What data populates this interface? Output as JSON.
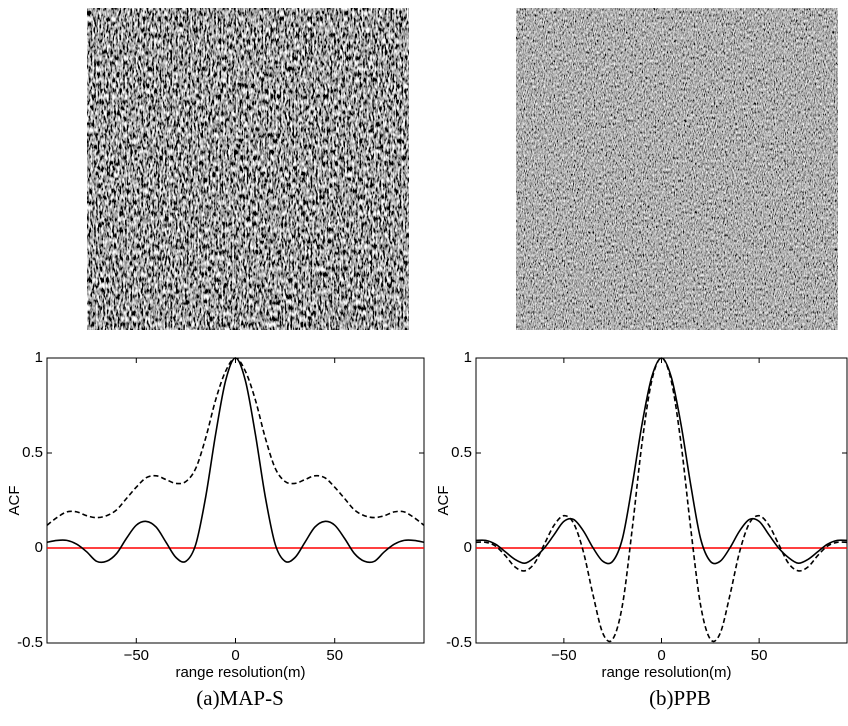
{
  "chart_data": [
    {
      "type": "line",
      "caption": "(a)MAP-S",
      "xlabel": "range resolution(m)",
      "ylabel": "ACF",
      "x": [
        -95,
        -90,
        -85,
        -80,
        -75,
        -70,
        -65,
        -60,
        -55,
        -50,
        -45,
        -40,
        -35,
        -30,
        -25,
        -20,
        -15,
        -10,
        -5,
        0,
        5,
        10,
        15,
        20,
        25,
        30,
        35,
        40,
        45,
        50,
        55,
        60,
        65,
        70,
        75,
        80,
        85,
        90,
        95
      ],
      "series": [
        {
          "color": "#000000",
          "style": "solid",
          "values": [
            0.03,
            0.04,
            0.04,
            0.02,
            -0.02,
            -0.07,
            -0.07,
            -0.03,
            0.05,
            0.12,
            0.14,
            0.11,
            0.03,
            -0.05,
            -0.07,
            0.02,
            0.27,
            0.6,
            0.88,
            1,
            0.88,
            0.6,
            0.27,
            0.02,
            -0.07,
            -0.05,
            0.03,
            0.11,
            0.14,
            0.12,
            0.05,
            -0.03,
            -0.07,
            -0.07,
            -0.02,
            0.02,
            0.04,
            0.04,
            0.03
          ]
        },
        {
          "color": "#000000",
          "style": "dashed",
          "values": [
            0.12,
            0.16,
            0.19,
            0.19,
            0.17,
            0.16,
            0.17,
            0.2,
            0.26,
            0.32,
            0.37,
            0.38,
            0.36,
            0.34,
            0.35,
            0.42,
            0.58,
            0.78,
            0.93,
            1,
            0.93,
            0.78,
            0.58,
            0.42,
            0.35,
            0.34,
            0.36,
            0.38,
            0.37,
            0.32,
            0.26,
            0.2,
            0.17,
            0.16,
            0.17,
            0.19,
            0.19,
            0.16,
            0.12
          ]
        }
      ],
      "hline": {
        "value": 0,
        "color": "#ff0000"
      },
      "xlim": [
        -95,
        95
      ],
      "xticks": [
        {
          "value": -50,
          "label": "−50"
        },
        0,
        50
      ],
      "ylim": [
        -0.5,
        1
      ],
      "yticks": [
        -0.5,
        0,
        0.5,
        1
      ]
    },
    {
      "type": "line",
      "caption": "(b)PPB",
      "xlabel": "range resolution(m)",
      "ylabel": "ACF",
      "x": [
        -95,
        -90,
        -85,
        -80,
        -75,
        -70,
        -65,
        -60,
        -55,
        -50,
        -45,
        -40,
        -35,
        -30,
        -25,
        -20,
        -15,
        -10,
        -5,
        0,
        5,
        10,
        15,
        20,
        25,
        30,
        35,
        40,
        45,
        50,
        55,
        60,
        65,
        70,
        75,
        80,
        85,
        90,
        95
      ],
      "series": [
        {
          "color": "#000000",
          "style": "solid",
          "values": [
            0.04,
            0.04,
            0.02,
            -0.02,
            -0.06,
            -0.08,
            -0.05,
            0,
            0.07,
            0.14,
            0.15,
            0.09,
            0,
            -0.07,
            -0.07,
            0.05,
            0.33,
            0.65,
            0.9,
            1,
            0.9,
            0.65,
            0.33,
            0.05,
            -0.07,
            -0.07,
            0,
            0.09,
            0.15,
            0.14,
            0.07,
            0,
            -0.05,
            -0.08,
            -0.06,
            -0.02,
            0.02,
            0.04,
            0.04
          ]
        },
        {
          "color": "#000000",
          "style": "dashed",
          "values": [
            0.03,
            0.03,
            0.01,
            -0.04,
            -0.1,
            -0.12,
            -0.08,
            0.02,
            0.12,
            0.17,
            0.13,
            -0.02,
            -0.25,
            -0.45,
            -0.48,
            -0.3,
            0.1,
            0.55,
            0.88,
            1,
            0.88,
            0.55,
            0.1,
            -0.3,
            -0.48,
            -0.45,
            -0.25,
            -0.02,
            0.13,
            0.17,
            0.12,
            0.02,
            -0.08,
            -0.12,
            -0.1,
            -0.04,
            0.01,
            0.03,
            0.03
          ]
        }
      ],
      "hline": {
        "value": 0,
        "color": "#ff0000"
      },
      "xlim": [
        -95,
        95
      ],
      "xticks": [
        {
          "value": -50,
          "label": "−50"
        },
        0,
        50
      ],
      "ylim": [
        -0.5,
        1
      ],
      "yticks": [
        -0.5,
        0,
        0.5,
        1
      ]
    }
  ]
}
